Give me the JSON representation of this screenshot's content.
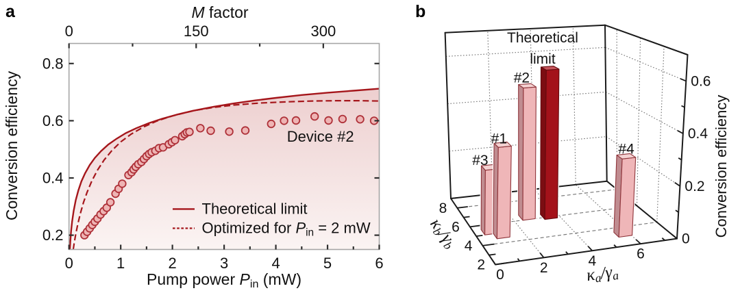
{
  "figure": {
    "panels": [
      {
        "letter": "a"
      },
      {
        "letter": "b"
      }
    ]
  },
  "colors": {
    "curve_red": "#a5161b",
    "point_fill": "#eeb4b4",
    "point_stroke": "#ae3038",
    "fill_top": "#edcfcf",
    "fill_bottom": "#fbf4f3",
    "bar_front": "#efb6b8",
    "bar_side": "#c08c90",
    "bar_top": "#f4d2d2",
    "bar_edge": "#8e343a",
    "tl_front": "#a3121a",
    "tl_side": "#7c0d12",
    "tl_top": "#c5555c",
    "tl_edge": "#640a0e",
    "grid_gray": "#757575",
    "axis_gray": "#a6a6a6",
    "tick_dark": "#2f2f2f",
    "text": "#111111"
  },
  "chart_data": [
    {
      "id": "a",
      "type": "line+scatter",
      "xlabel": {
        "prefix": "Pump power ",
        "symbol": "P",
        "sub": "in",
        "suffix": " (mW)"
      },
      "xlabel_top": {
        "symbol": "M",
        "suffix": " factor"
      },
      "ylabel": "Conversion efficiency",
      "xlim": [
        0,
        6
      ],
      "ylim": [
        0.15,
        0.87
      ],
      "xticks_major": [
        0,
        1,
        2,
        3,
        4,
        5,
        6
      ],
      "xticks_minor": [
        0.5,
        1.5,
        2.5,
        3.5,
        4.5,
        5.5
      ],
      "yticks_major": [
        0.2,
        0.4,
        0.6,
        0.8
      ],
      "top_axis": {
        "lim_per_mw": 61.0,
        "ticks_major": [
          0,
          150,
          300
        ],
        "ticks_minor": [
          75,
          225
        ]
      },
      "legend": [
        {
          "label_parts": {
            "prefix": "Theoretical limit"
          },
          "style": "solid"
        },
        {
          "label_parts": {
            "prefix": "Optimized for ",
            "symbol": "P",
            "sub": "in",
            "suffix": " = 2 mW"
          },
          "style": "dashed"
        }
      ],
      "annotation": "Device #2",
      "series": [
        {
          "name": "Theoretical limit",
          "style": "solid",
          "fill_under": true,
          "points": [
            [
              0.017,
              0.151
            ],
            [
              0.025,
              0.177
            ],
            [
              0.04,
              0.213
            ],
            [
              0.06,
              0.247
            ],
            [
              0.09,
              0.285
            ],
            [
              0.13,
              0.322
            ],
            [
              0.18,
              0.356
            ],
            [
              0.24,
              0.388
            ],
            [
              0.31,
              0.416
            ],
            [
              0.4,
              0.445
            ],
            [
              0.5,
              0.47
            ],
            [
              0.62,
              0.494
            ],
            [
              0.76,
              0.517
            ],
            [
              0.92,
              0.537
            ],
            [
              1.1,
              0.557
            ],
            [
              1.3,
              0.574
            ],
            [
              1.55,
              0.592
            ],
            [
              1.8,
              0.607
            ],
            [
              2.1,
              0.622
            ],
            [
              2.4,
              0.635
            ],
            [
              2.8,
              0.649
            ],
            [
              3.2,
              0.661
            ],
            [
              3.6,
              0.671
            ],
            [
              4.0,
              0.68
            ],
            [
              4.5,
              0.69
            ],
            [
              5.0,
              0.698
            ],
            [
              5.5,
              0.705
            ],
            [
              6.0,
              0.712
            ]
          ]
        },
        {
          "name": "Optimized for Pin = 2 mW",
          "style": "dashed",
          "points": [
            [
              0.082,
              0.15
            ],
            [
              0.1,
              0.171
            ],
            [
              0.13,
              0.203
            ],
            [
              0.17,
              0.238
            ],
            [
              0.22,
              0.276
            ],
            [
              0.28,
              0.314
            ],
            [
              0.35,
              0.35
            ],
            [
              0.44,
              0.389
            ],
            [
              0.55,
              0.427
            ],
            [
              0.68,
              0.463
            ],
            [
              0.83,
              0.496
            ],
            [
              1.0,
              0.526
            ],
            [
              1.2,
              0.553
            ],
            [
              1.45,
              0.579
            ],
            [
              1.7,
              0.599
            ],
            [
              2.0,
              0.617
            ],
            [
              2.4,
              0.635
            ],
            [
              2.8,
              0.647
            ],
            [
              3.2,
              0.655
            ],
            [
              3.7,
              0.662
            ],
            [
              4.2,
              0.666
            ],
            [
              4.7,
              0.669
            ],
            [
              5.2,
              0.67
            ],
            [
              5.6,
              0.67
            ],
            [
              6.0,
              0.669
            ]
          ]
        },
        {
          "name": "Device #2",
          "style": "scatter",
          "points": [
            [
              0.3,
              0.2
            ],
            [
              0.35,
              0.212
            ],
            [
              0.4,
              0.224
            ],
            [
              0.45,
              0.236
            ],
            [
              0.5,
              0.247
            ],
            [
              0.55,
              0.258
            ],
            [
              0.61,
              0.272
            ],
            [
              0.67,
              0.284
            ],
            [
              0.73,
              0.296
            ],
            [
              0.8,
              0.315
            ],
            [
              0.9,
              0.345
            ],
            [
              0.96,
              0.362
            ],
            [
              1.03,
              0.38
            ],
            [
              1.15,
              0.41
            ],
            [
              1.21,
              0.42
            ],
            [
              1.25,
              0.43
            ],
            [
              1.29,
              0.439
            ],
            [
              1.34,
              0.448
            ],
            [
              1.4,
              0.456
            ],
            [
              1.45,
              0.466
            ],
            [
              1.5,
              0.476
            ],
            [
              1.55,
              0.484
            ],
            [
              1.6,
              0.49
            ],
            [
              1.67,
              0.495
            ],
            [
              1.74,
              0.504
            ],
            [
              1.82,
              0.507
            ],
            [
              1.93,
              0.518
            ],
            [
              1.99,
              0.525
            ],
            [
              2.05,
              0.532
            ],
            [
              2.19,
              0.546
            ],
            [
              2.24,
              0.553
            ],
            [
              2.28,
              0.559
            ],
            [
              2.33,
              0.561
            ],
            [
              2.54,
              0.574
            ],
            [
              2.74,
              0.565
            ],
            [
              3.1,
              0.562
            ],
            [
              3.41,
              0.566
            ],
            [
              3.91,
              0.589
            ],
            [
              4.16,
              0.6
            ],
            [
              4.39,
              0.601
            ],
            [
              4.75,
              0.615
            ],
            [
              5.02,
              0.601
            ],
            [
              5.29,
              0.606
            ],
            [
              5.63,
              0.605
            ],
            [
              5.9,
              0.6
            ]
          ]
        }
      ]
    },
    {
      "id": "b",
      "type": "bar3d",
      "xlabel": {
        "symbol": "κ",
        "sub": "a",
        "mid": "/",
        "symbol2": "γ",
        "sub2": "a"
      },
      "ylabel": {
        "symbol": "κ",
        "sub": "b",
        "mid": "/",
        "symbol2": "γ",
        "sub2": "b"
      },
      "zlabel": "Conversion efficiency",
      "xlim": [
        0,
        7.5
      ],
      "ylim": [
        2,
        9
      ],
      "zlim": [
        0,
        0.7
      ],
      "xticks_major": [
        0,
        2,
        4,
        6
      ],
      "xticks_minor": [
        1,
        3,
        5,
        7
      ],
      "yticks_major": [
        2,
        4,
        6,
        8
      ],
      "yticks_minor": [
        3,
        5,
        7,
        9
      ],
      "zticks_major": [
        0,
        0.2,
        0.4,
        0.6
      ],
      "zticks_minor": [
        0.1,
        0.3,
        0.5,
        0.7
      ],
      "bars": [
        {
          "label": "#3",
          "ka": 0.66,
          "kb": 5.3,
          "value": 0.25,
          "kind": "device"
        },
        {
          "label": "#1",
          "ka": 1.04,
          "kb": 4.77,
          "value": 0.35,
          "kind": "device"
        },
        {
          "label": "#2",
          "ka": 2.65,
          "kb": 6.27,
          "value": 0.53,
          "kind": "device"
        },
        {
          "label": "Theoretical limit",
          "ka": 3.57,
          "kb": 6.07,
          "value": 0.6,
          "kind": "limit"
        },
        {
          "label": "#4",
          "ka": 5.75,
          "kb": 3.27,
          "value": 0.3,
          "kind": "device"
        }
      ]
    }
  ]
}
